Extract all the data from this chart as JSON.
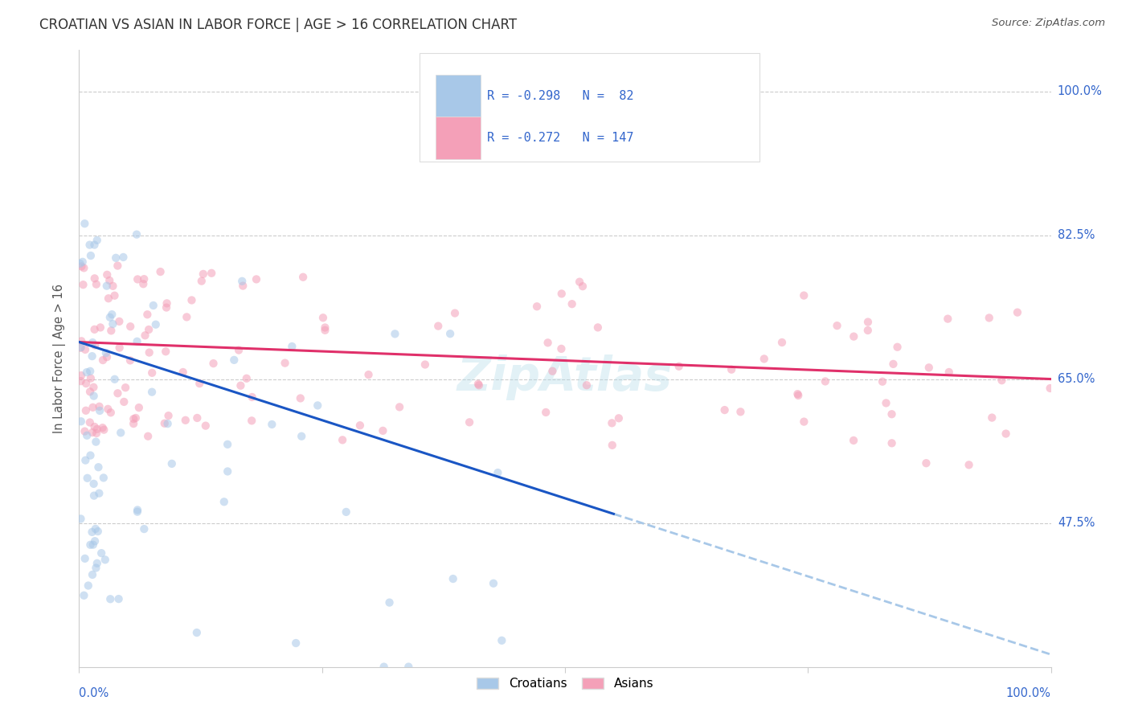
{
  "title": "CROATIAN VS ASIAN IN LABOR FORCE | AGE > 16 CORRELATION CHART",
  "source": "Source: ZipAtlas.com",
  "ylabel": "In Labor Force | Age > 16",
  "xlim": [
    0.0,
    1.0
  ],
  "ylim": [
    0.3,
    1.05
  ],
  "ytick_labels": [
    "47.5%",
    "65.0%",
    "82.5%",
    "100.0%"
  ],
  "ytick_values": [
    0.475,
    0.65,
    0.825,
    1.0
  ],
  "croatian_color": "#a8c8e8",
  "asian_color": "#f4a0b8",
  "trendline_croatian_solid_color": "#1a56c4",
  "trendline_asian_color": "#e0306a",
  "trendline_croatian_dashed_color": "#a8c8e8",
  "R_croatian": -0.298,
  "N_croatian": 82,
  "R_asian": -0.272,
  "N_asian": 147,
  "legend_label_croatian": "Croatians",
  "legend_label_asian": "Asians",
  "background_color": "#ffffff",
  "grid_color": "#cccccc",
  "title_color": "#333333",
  "axis_label_color": "#3366cc",
  "source_color": "#555555",
  "ylabel_color": "#555555",
  "legend_box_color": "#dddddd",
  "watermark_text": "ZipAtlas",
  "watermark_color": "#add8e6",
  "watermark_alpha": 0.35,
  "trendline_croatian_intercept": 0.695,
  "trendline_croatian_slope": -0.38,
  "trendline_asian_intercept": 0.695,
  "trendline_asian_slope": -0.045,
  "scatter_marker_size": 55,
  "scatter_alpha": 0.55
}
